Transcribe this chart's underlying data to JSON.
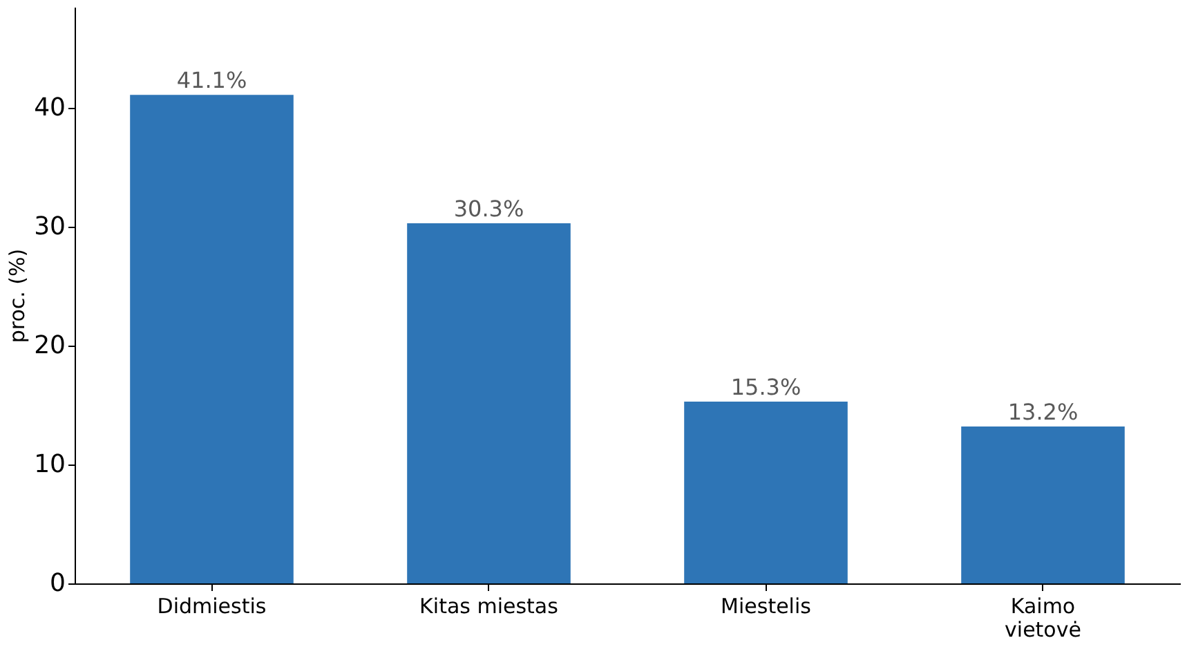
{
  "chart_data": {
    "type": "bar",
    "ylabel": "proc. (%)",
    "categories": [
      "Didmiestis",
      "Kitas miestas",
      "Miestelis",
      "Kaimo\nvietovė"
    ],
    "values": [
      41.1,
      30.3,
      15.3,
      13.2
    ],
    "value_labels": [
      "41.1%",
      "30.3%",
      "15.3%",
      "13.2%"
    ],
    "color": "#2e75b6",
    "ylim": [
      0,
      48.5
    ],
    "yticks": [
      0,
      10,
      20,
      30,
      40
    ],
    "grid": false
  }
}
